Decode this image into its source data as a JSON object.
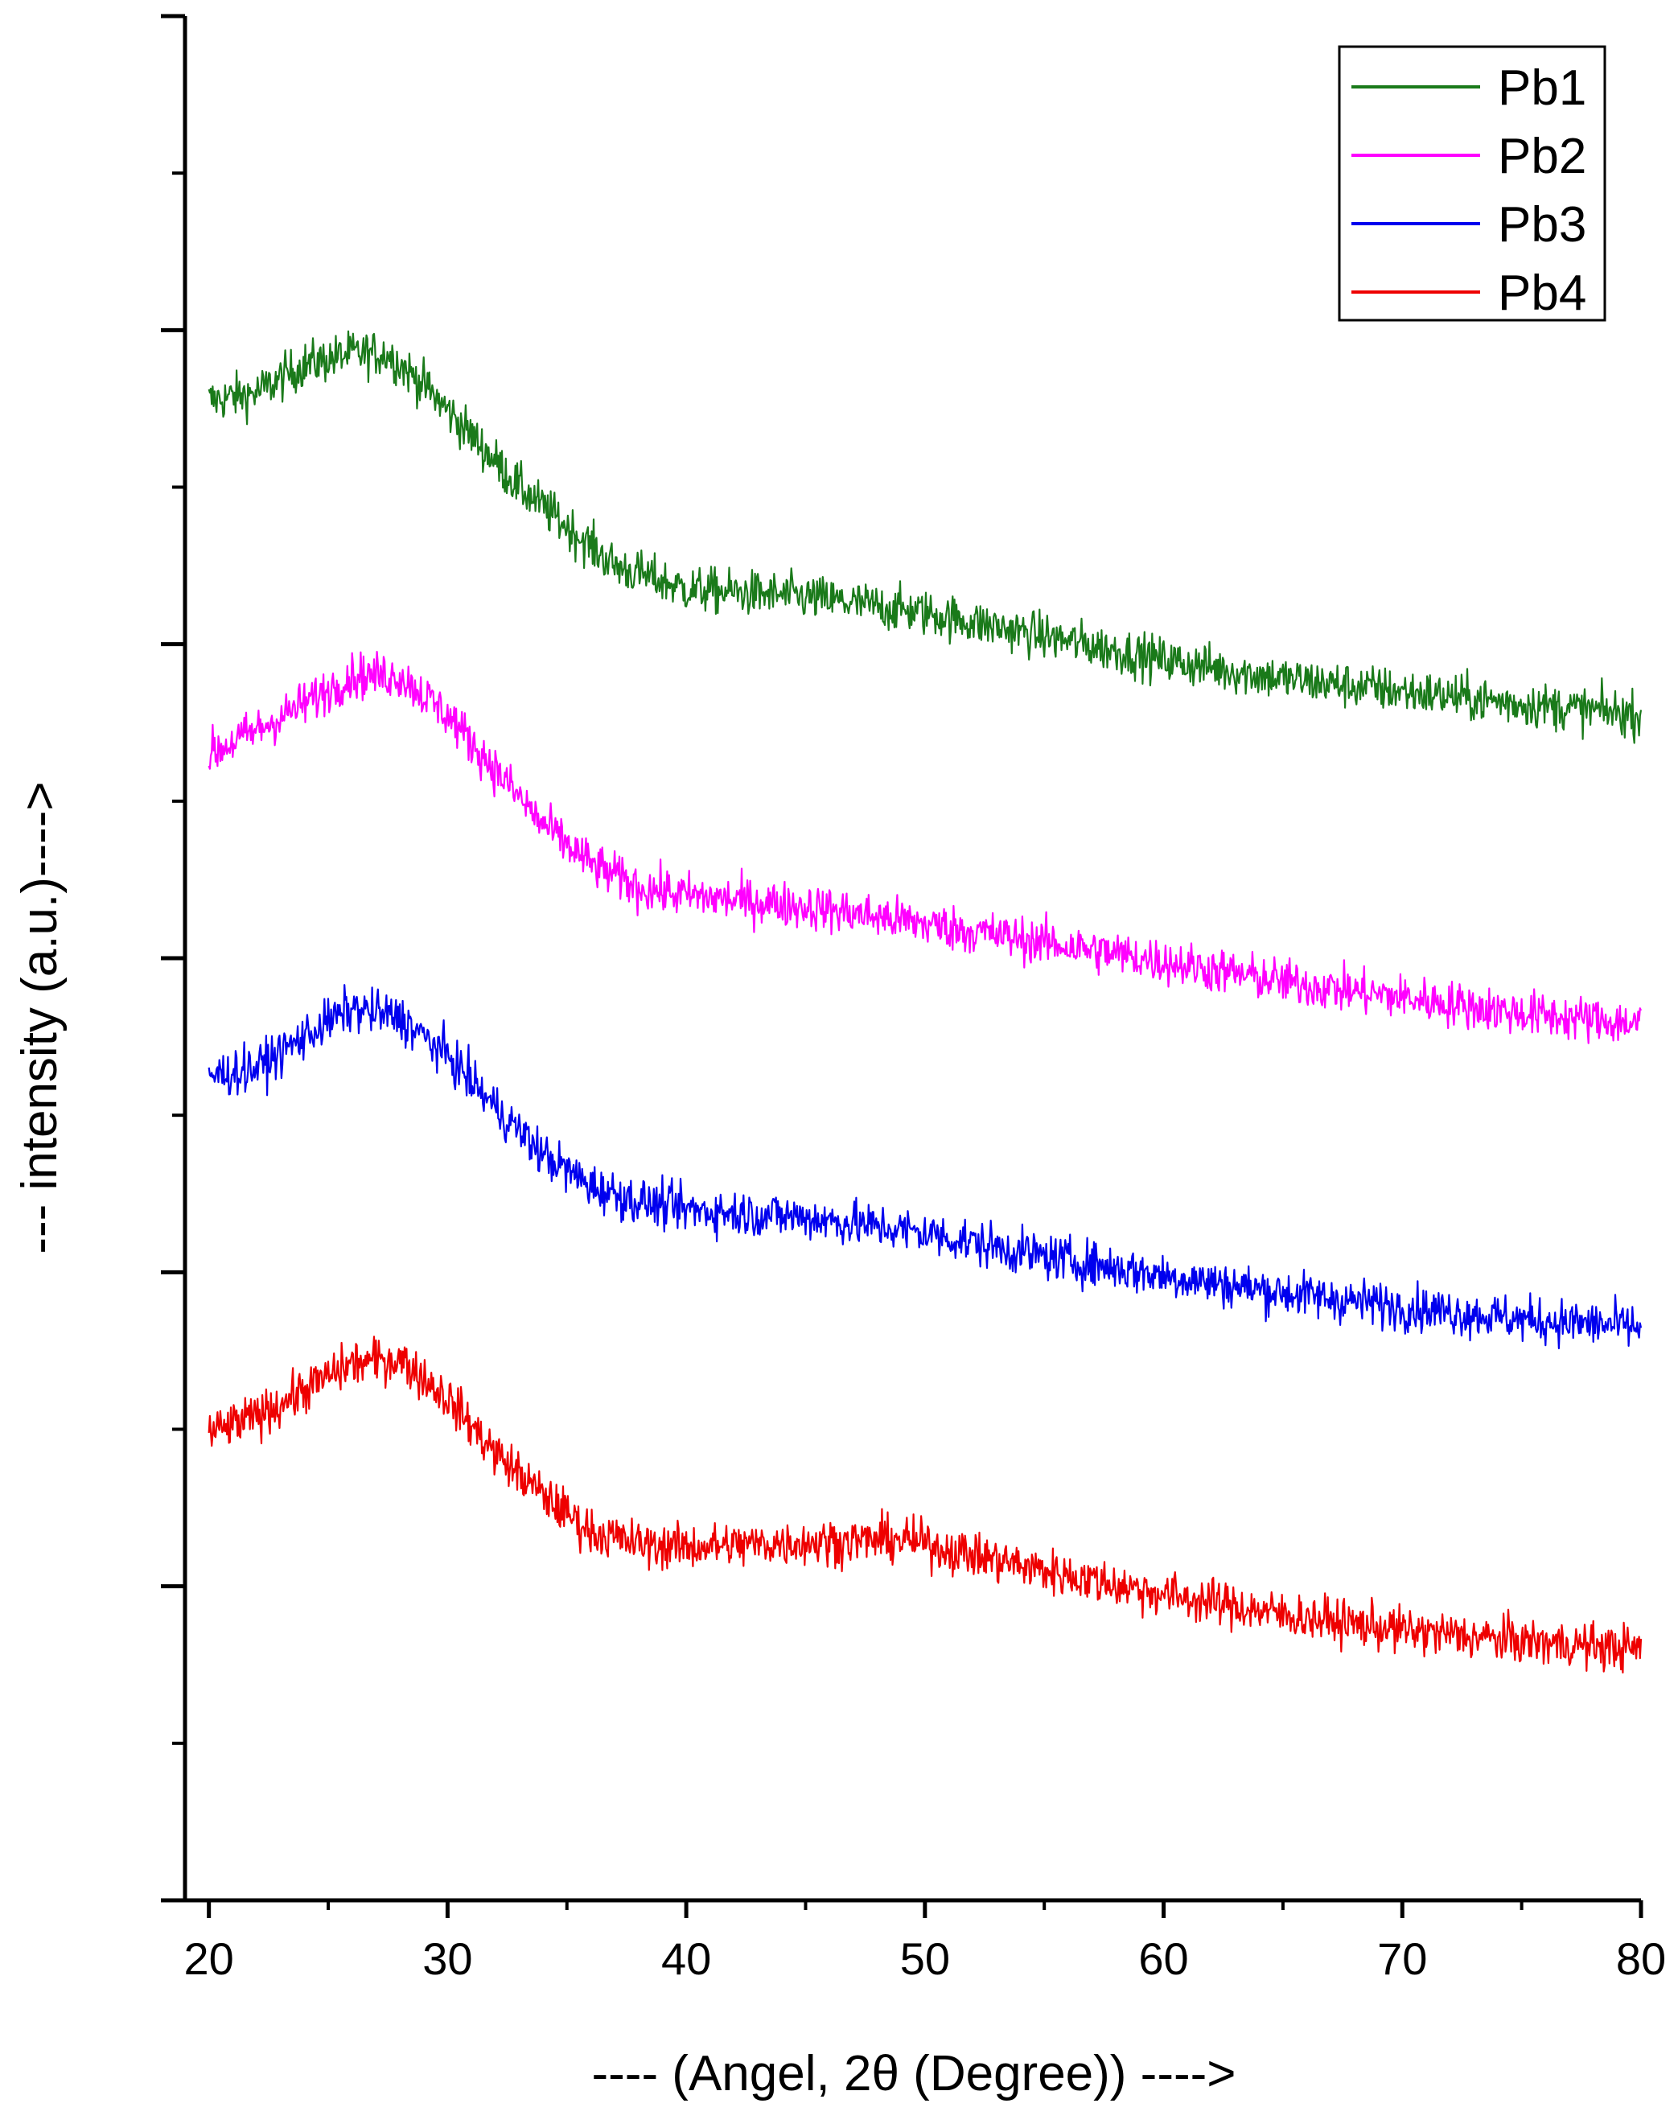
{
  "chart_data": {
    "type": "line",
    "title": "",
    "xlabel": "---- (Angel, 2θ (Degree)) ---->",
    "ylabel": "--- intensity (a.u.)---->",
    "xlim": [
      19,
      80
    ],
    "ylim": [
      0,
      12
    ],
    "x_ticks": [
      20,
      30,
      40,
      50,
      60,
      70,
      80
    ],
    "x_tick_labels": [
      "20",
      "30",
      "40",
      "50",
      "60",
      "70",
      "80"
    ],
    "x_minor_ticks": [
      25,
      35,
      45,
      55,
      65,
      75
    ],
    "y_ticks": [
      0,
      2,
      4,
      6,
      8,
      10,
      12
    ],
    "y_minor_ticks": [
      1,
      3,
      5,
      7,
      9,
      11
    ],
    "y_tick_labels_shown": false,
    "grid": false,
    "legend_position": "top-right",
    "x_range": [
      20,
      80
    ],
    "noise": 0.13,
    "series": [
      {
        "name": "Pb1",
        "color": "#1a7a1a",
        "profile": [
          [
            20,
            9.55
          ],
          [
            22,
            9.6
          ],
          [
            24,
            9.78
          ],
          [
            26,
            9.85
          ],
          [
            27.5,
            9.85
          ],
          [
            29,
            9.65
          ],
          [
            31,
            9.33
          ],
          [
            33,
            9.0
          ],
          [
            35,
            8.75
          ],
          [
            37,
            8.5
          ],
          [
            40,
            8.35
          ],
          [
            45,
            8.3
          ],
          [
            50,
            8.2
          ],
          [
            55,
            8.05
          ],
          [
            60,
            7.9
          ],
          [
            65,
            7.78
          ],
          [
            70,
            7.7
          ],
          [
            75,
            7.62
          ],
          [
            80,
            7.55
          ]
        ]
      },
      {
        "name": "Pb2",
        "color": "#ff00ff",
        "profile": [
          [
            20,
            7.3
          ],
          [
            22,
            7.45
          ],
          [
            24,
            7.62
          ],
          [
            26,
            7.8
          ],
          [
            28,
            7.8
          ],
          [
            30,
            7.55
          ],
          [
            32,
            7.2
          ],
          [
            34,
            6.85
          ],
          [
            36,
            6.6
          ],
          [
            38,
            6.45
          ],
          [
            40,
            6.4
          ],
          [
            45,
            6.33
          ],
          [
            50,
            6.22
          ],
          [
            55,
            6.1
          ],
          [
            60,
            5.98
          ],
          [
            65,
            5.85
          ],
          [
            70,
            5.75
          ],
          [
            75,
            5.65
          ],
          [
            80,
            5.58
          ]
        ]
      },
      {
        "name": "Pb3",
        "color": "#0000ee",
        "profile": [
          [
            20,
            5.25
          ],
          [
            22,
            5.3
          ],
          [
            24.5,
            5.55
          ],
          [
            26,
            5.68
          ],
          [
            28,
            5.62
          ],
          [
            30,
            5.38
          ],
          [
            32,
            5.05
          ],
          [
            34,
            4.75
          ],
          [
            36,
            4.55
          ],
          [
            38,
            4.45
          ],
          [
            40,
            4.4
          ],
          [
            45,
            4.35
          ],
          [
            50,
            4.25
          ],
          [
            55,
            4.1
          ],
          [
            60,
            3.98
          ],
          [
            65,
            3.87
          ],
          [
            70,
            3.78
          ],
          [
            75,
            3.7
          ],
          [
            80,
            3.65
          ]
        ]
      },
      {
        "name": "Pb4",
        "color": "#ee0000",
        "profile": [
          [
            20,
            2.97
          ],
          [
            22,
            3.08
          ],
          [
            24,
            3.25
          ],
          [
            26,
            3.42
          ],
          [
            28,
            3.45
          ],
          [
            30,
            3.2
          ],
          [
            32,
            2.85
          ],
          [
            34,
            2.58
          ],
          [
            36,
            2.35
          ],
          [
            38,
            2.27
          ],
          [
            40,
            2.25
          ],
          [
            45,
            2.28
          ],
          [
            49,
            2.3
          ],
          [
            52,
            2.2
          ],
          [
            55,
            2.1
          ],
          [
            60,
            1.95
          ],
          [
            65,
            1.82
          ],
          [
            70,
            1.72
          ],
          [
            75,
            1.65
          ],
          [
            80,
            1.6
          ]
        ]
      }
    ]
  }
}
